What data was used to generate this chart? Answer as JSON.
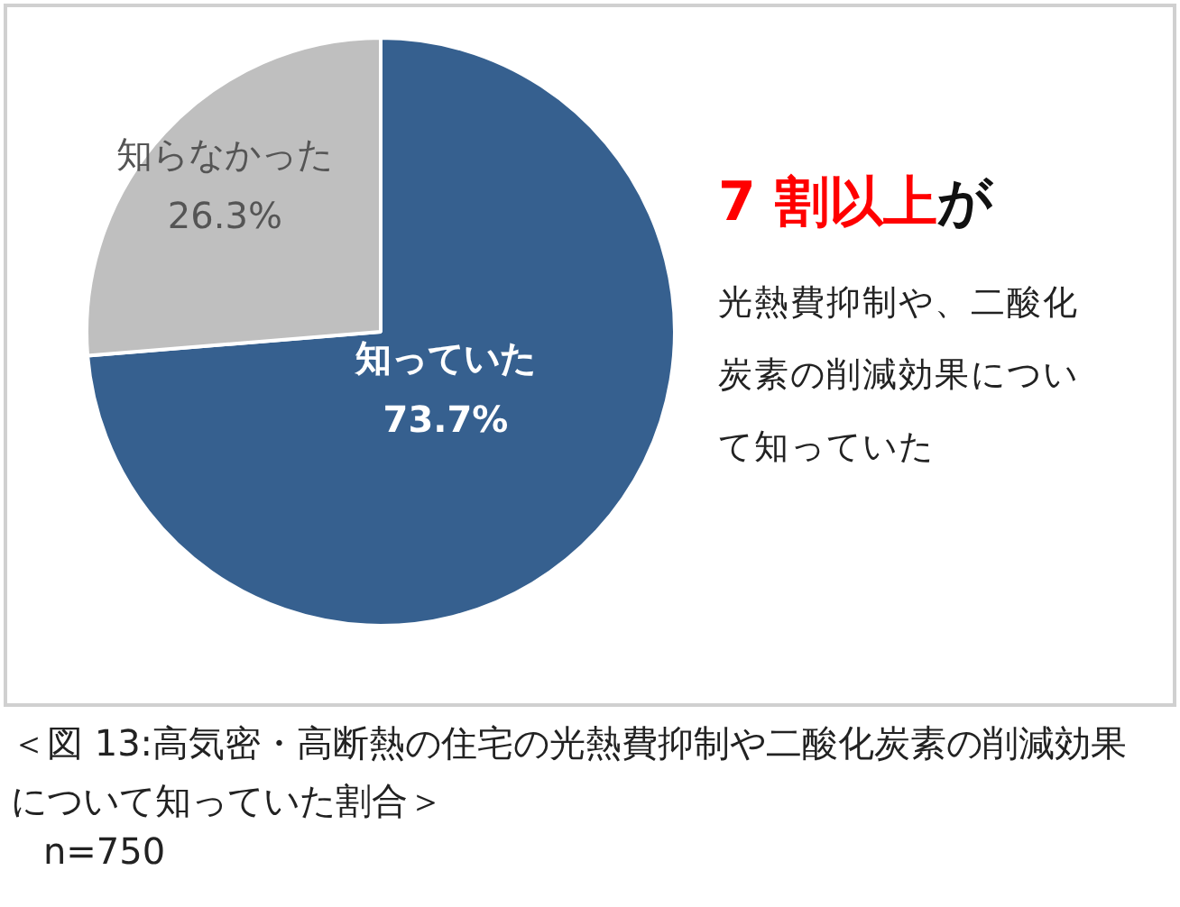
{
  "chart_data": {
    "type": "pie",
    "categories": [
      "知っていた",
      "知らなかった"
    ],
    "values": [
      73.7,
      26.3
    ],
    "colors": [
      "#36608f",
      "#bfbfbf"
    ],
    "value_labels": [
      "73.7%",
      "26.3%"
    ],
    "annotations": [
      "7 割以上",
      "が",
      "光熱費抑制や、二酸化炭素の削減効果について知っていた",
      "＜図 13:高気密・高断熱の住宅の光熱費抑制や二酸化炭素の削減効果について知っていた割合＞",
      "n=750"
    ]
  }
}
